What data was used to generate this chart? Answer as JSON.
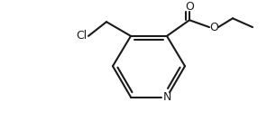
{
  "background_color": "#ffffff",
  "line_color": "#1a1a1a",
  "line_width": 1.5,
  "font_size": 9,
  "figsize": [
    2.96,
    1.34
  ],
  "dpi": 100,
  "xlim": [
    0,
    296
  ],
  "ylim": [
    0,
    134
  ]
}
